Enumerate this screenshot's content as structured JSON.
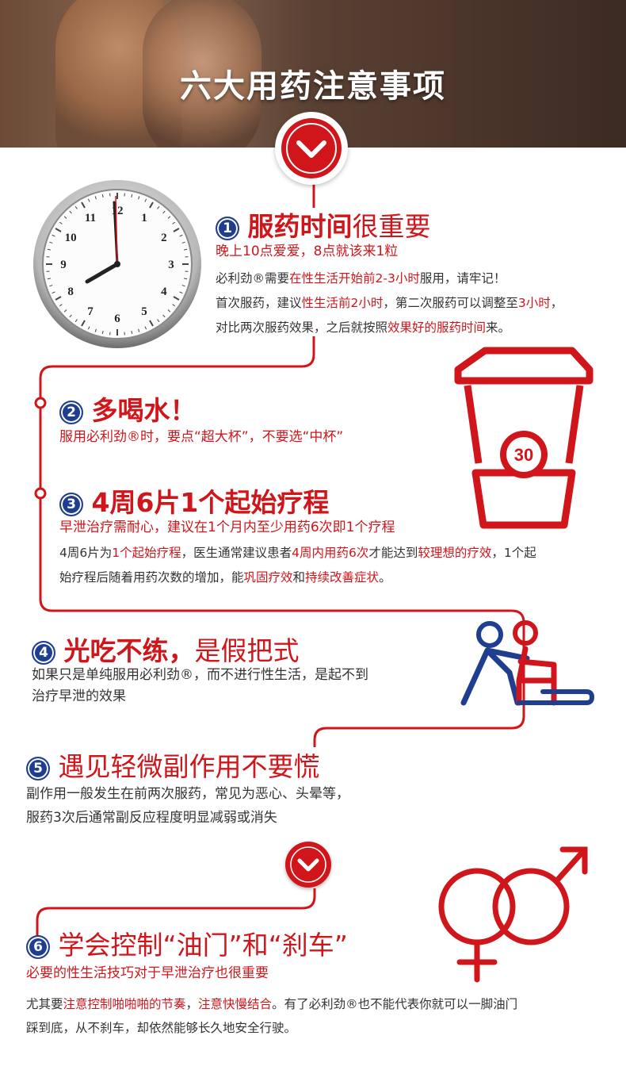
{
  "header": {
    "title": "六大用药注意事项"
  },
  "colors": {
    "accent": "#d0161b",
    "badge": "#1f3e8f"
  },
  "clock": {
    "numbers": [
      "12",
      "1",
      "2",
      "3",
      "4",
      "5",
      "6",
      "7",
      "8",
      "9",
      "10",
      "11"
    ]
  },
  "sections": [
    {
      "num": "1",
      "title_bold": "服药时间",
      "title_plain": "很重要",
      "subtitle": "晚上10点爱爱，8点就该来1粒",
      "lines": [
        [
          {
            "t": "必利劲®需要"
          },
          {
            "t": "在性生活开始前2-3小时",
            "r": true
          },
          {
            "t": "服用，请牢记！"
          }
        ],
        [
          {
            "t": "首次服药，建议"
          },
          {
            "t": "性生活前2小时",
            "r": true
          },
          {
            "t": "，第二次服药可以调整至"
          },
          {
            "t": "3小时",
            "r": true
          },
          {
            "t": "，"
          }
        ],
        [
          {
            "t": "对比两次服药效果，之后就按照"
          },
          {
            "t": "效果好的服药时间",
            "r": true
          },
          {
            "t": "来。"
          }
        ]
      ]
    },
    {
      "num": "2",
      "title_bold": "多喝水！",
      "subtitle": "服用必利劲®时，要点“超大杯”，不要选“中杯”",
      "cup_label": "30"
    },
    {
      "num": "3",
      "title_bold": "4周6片1个起始疗程",
      "subtitle": "早泄治疗需耐心，建议在1个月内至少用药6次即1个疗程",
      "lines": [
        [
          {
            "t": "4周6片为"
          },
          {
            "t": "1个起始疗程",
            "r": true
          },
          {
            "t": "，医生通常建议患者"
          },
          {
            "t": "4周内用药6次",
            "r": true
          },
          {
            "t": "才能达到"
          },
          {
            "t": "较理想的疗效",
            "r": true
          },
          {
            "t": "，1个起"
          }
        ],
        [
          {
            "t": "始疗程后随着用药次数的增加，能"
          },
          {
            "t": "巩固疗效",
            "r": true
          },
          {
            "t": "和"
          },
          {
            "t": "持续改善症状",
            "r": true
          },
          {
            "t": "。"
          }
        ]
      ]
    },
    {
      "num": "4",
      "title_bold": "光吃不练，",
      "title_plain": "是假把式",
      "lines": [
        [
          {
            "t": "如果只是单纯服用必利劲®，而不进行性生活，是起不到"
          }
        ],
        [
          {
            "t": "治疗早泄的效果"
          }
        ]
      ]
    },
    {
      "num": "5",
      "title_plain": "遇见轻微副作用不要慌",
      "lines": [
        [
          {
            "t": "副作用一般发生在前两次服药，常见为恶心、头晕等，"
          }
        ],
        [
          {
            "t": "服药3次后通常副反应程度明显减弱或消失"
          }
        ]
      ]
    },
    {
      "num": "6",
      "title_plain": "学会控制“油门”和“刹车”",
      "subtitle": "必要的性生活技巧对于早泄治疗也很重要",
      "lines": [
        [
          {
            "t": "尤其要"
          },
          {
            "t": "注意控制啪啪啪的节奏",
            "r": true
          },
          {
            "t": "，"
          },
          {
            "t": "注意快慢结合",
            "r": true
          },
          {
            "t": "。有了必利劲®也不能代表你就可以一脚油门"
          }
        ],
        [
          {
            "t": "踩到底，从不刹车，却依然能够长久地安全行驶。"
          }
        ]
      ]
    }
  ]
}
